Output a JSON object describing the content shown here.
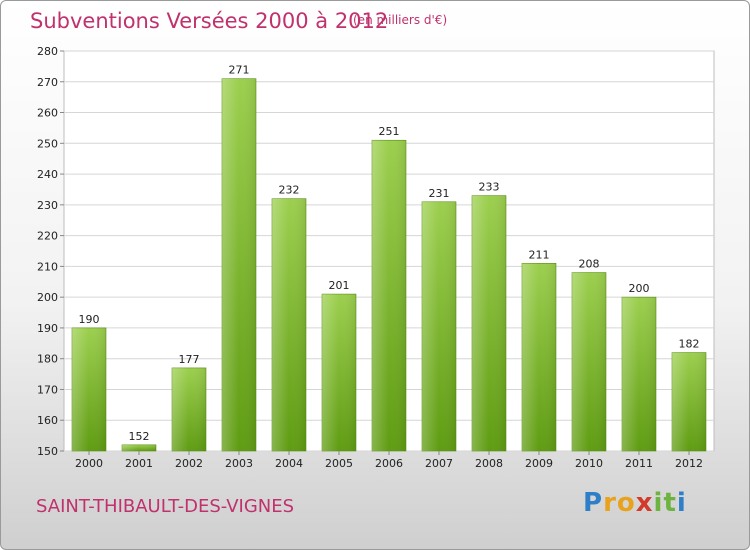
{
  "chart_data": {
    "type": "bar",
    "title": "Subventions Versées 2000 à 2012",
    "subtitle": "(en milliers d'€)",
    "categories": [
      "2000",
      "2001",
      "2002",
      "2003",
      "2004",
      "2005",
      "2006",
      "2007",
      "2008",
      "2009",
      "2010",
      "2011",
      "2012"
    ],
    "values": [
      190,
      152,
      177,
      271,
      232,
      201,
      251,
      231,
      233,
      211,
      208,
      200,
      182
    ],
    "ylim": [
      150,
      280
    ],
    "yticks": [
      150,
      160,
      170,
      180,
      190,
      200,
      210,
      220,
      230,
      240,
      250,
      260,
      270,
      280
    ],
    "grid": true,
    "bar_color": "#7fc12f"
  },
  "footer": {
    "city": "SAINT-THIBAULT-DES-VIGNES",
    "logo_letters": [
      {
        "ch": "P",
        "color": "#2f7fc8"
      },
      {
        "ch": "r",
        "color": "#e8a21c"
      },
      {
        "ch": "o",
        "color": "#e8a21c"
      },
      {
        "ch": "x",
        "color": "#d23a2a"
      },
      {
        "ch": "i",
        "color": "#6cb33f"
      },
      {
        "ch": "t",
        "color": "#6cb33f"
      },
      {
        "ch": "i",
        "color": "#2f7fc8"
      }
    ]
  }
}
